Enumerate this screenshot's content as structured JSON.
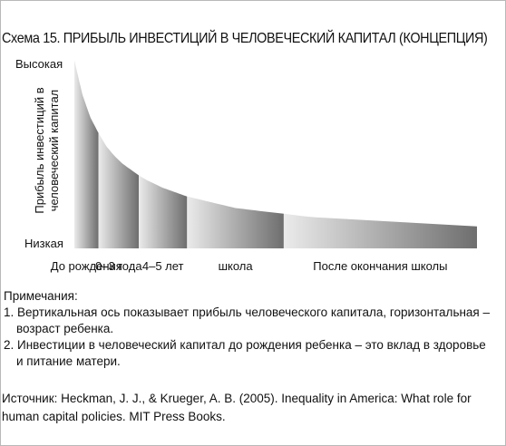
{
  "title": "Схема 15. ПРИБЫЛЬ ИНВЕСТИЦИЙ В ЧЕЛОВЕЧЕСКИЙ КАПИТАЛ (КОНЦЕПЦИЯ)",
  "chart_data": {
    "type": "area",
    "title": "Схема 15. ПРИБЫЛЬ ИНВЕСТИЦИЙ В ЧЕЛОВЕЧЕСКИЙ КАПИТАЛ (КОНЦЕПЦИЯ)",
    "ylabel": "Прибыль инвестиций в человеческий капитал",
    "ytick_labels": [
      "Высокая",
      "Низкая"
    ],
    "categories": [
      "До рождения",
      "0–3 года",
      "4–5 лет",
      "школа",
      "После окончания школы"
    ],
    "x": [
      0,
      2,
      4,
      6,
      8,
      10,
      12,
      14,
      16,
      18,
      20,
      22,
      24,
      26,
      28,
      30,
      32,
      34,
      36,
      38,
      40,
      42,
      44,
      46,
      48,
      50,
      52,
      54,
      56,
      58,
      60
    ],
    "y": [
      0.98,
      0.8,
      0.68,
      0.6,
      0.53,
      0.48,
      0.44,
      0.41,
      0.38,
      0.355,
      0.335,
      0.315,
      0.3,
      0.285,
      0.27,
      0.26,
      0.25,
      0.24,
      0.23,
      0.22,
      0.21,
      0.205,
      0.2,
      0.195,
      0.19,
      0.185,
      0.18,
      0.175,
      0.17,
      0.165,
      0.162
    ],
    "segments": [
      {
        "label": "До рождения",
        "x_start": 0,
        "x_end": 6
      },
      {
        "label": "0–3 года",
        "x_start": 6,
        "x_end": 16
      },
      {
        "label": "4–5 лет",
        "x_start": 16,
        "x_end": 28
      },
      {
        "label": "школа",
        "x_start": 28,
        "x_end": 52
      },
      {
        "label": "После окончания школы",
        "x_start": 52,
        "x_end": 100
      }
    ],
    "xlim": [
      0,
      100
    ],
    "ylim": [
      0,
      1
    ],
    "grid": false,
    "legend": false
  },
  "notes": {
    "heading": "Примечания:",
    "item1_line1": "1. Вертикальная ось показывает прибыль человеческого капитала, горизонтальная –",
    "item1_line2": "возраст ребенка.",
    "item2_line1": "2. Инвестиции в человеческий капитал до рождения ребенка – это вклад в здоровье",
    "item2_line2": "и питание матери."
  },
  "source": "Источник: Heckman, J. J., & Krueger, A. B. (2005). Inequality in America: What role for human capital policies. MIT Press Books.",
  "colors": {
    "dark": "#6e6e6e",
    "light": "#ebebeb",
    "frame": "#b8b8b8"
  }
}
